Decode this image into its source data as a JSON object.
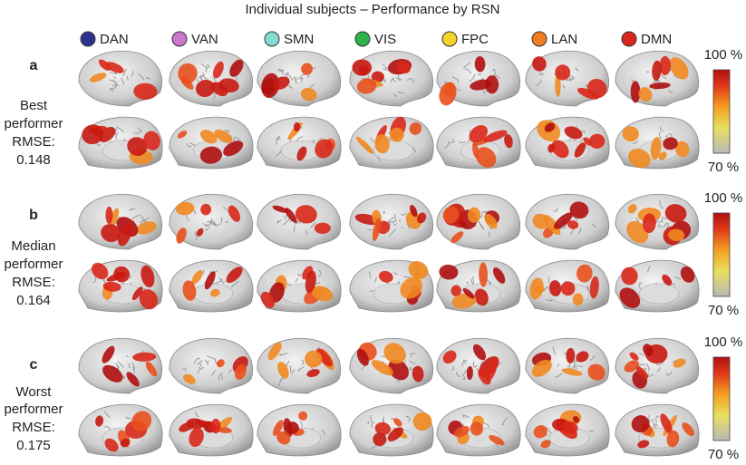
{
  "title": "Individual subjects – Performance by RSN",
  "networks": [
    {
      "name": "DAN",
      "color": "#2e3192"
    },
    {
      "name": "VAN",
      "color": "#cc77cc"
    },
    {
      "name": "SMN",
      "color": "#84dcd4"
    },
    {
      "name": "VIS",
      "color": "#2db34a"
    },
    {
      "name": "FPC",
      "color": "#f5d327"
    },
    {
      "name": "LAN",
      "color": "#f07f22"
    },
    {
      "name": "DMN",
      "color": "#d9261c"
    }
  ],
  "rows": [
    {
      "letter": "a",
      "lines": [
        "Best",
        "performer",
        "RMSE:",
        "0.148"
      ]
    },
    {
      "letter": "b",
      "lines": [
        "Median",
        "performer",
        "RMSE:",
        "0.164"
      ]
    },
    {
      "letter": "c",
      "lines": [
        "Worst",
        "performer",
        "RMSE:",
        "0.175"
      ]
    }
  ],
  "colorbar": {
    "max_label": "100 %",
    "min_label": "70 %"
  }
}
